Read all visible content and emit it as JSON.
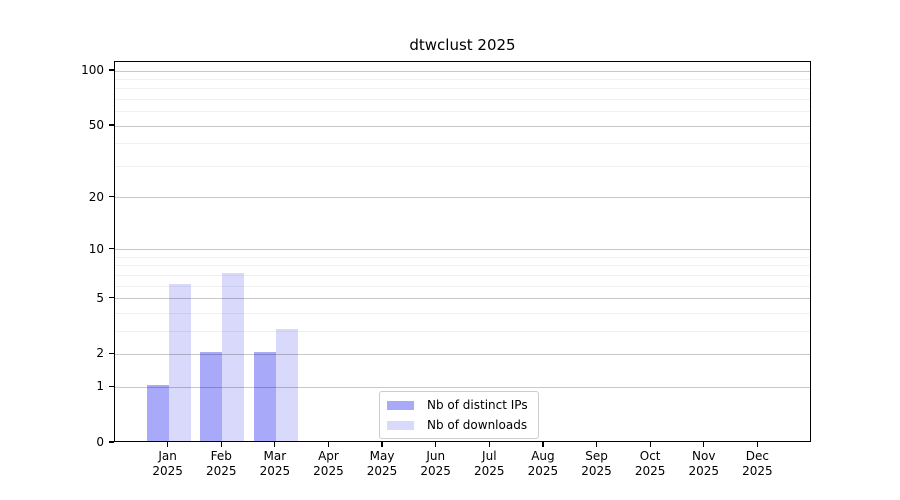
{
  "chart_data": {
    "type": "bar",
    "title": "dtwclust 2025",
    "categories": [
      "Jan",
      "Feb",
      "Mar",
      "Apr",
      "May",
      "Jun",
      "Jul",
      "Aug",
      "Sep",
      "Oct",
      "Nov",
      "Dec"
    ],
    "year_label": "2025",
    "series": [
      {
        "name": "Nb of distinct IPs",
        "color": "#a9a9f9",
        "values": [
          1,
          2,
          2,
          0,
          0,
          0,
          0,
          0,
          0,
          0,
          0,
          0
        ]
      },
      {
        "name": "Nb of downloads",
        "color": "#d9d9fb",
        "values": [
          6,
          7,
          3,
          0,
          0,
          0,
          0,
          0,
          0,
          0,
          0,
          0
        ]
      }
    ],
    "yscale": "log1p",
    "ylim": [
      0,
      112
    ],
    "y_major_ticks": [
      0,
      1,
      2,
      5,
      10,
      20,
      50,
      100
    ],
    "y_minor_gridlines": [
      3,
      4,
      6,
      7,
      8,
      9,
      30,
      40,
      60,
      70,
      80,
      90
    ],
    "grid": "horizontal, major and minor, drawn over bars",
    "legend_position": "lower center, inside axes",
    "bar_layout": "pairs centered on month tick: distinct-IPs bar left of tick, downloads bar right of tick",
    "colors": {
      "axis_frame": "#000000",
      "major_grid": "#c8c8c8",
      "minor_grid": "#f1f1f1",
      "background": "#ffffff",
      "text": "#000000"
    }
  }
}
